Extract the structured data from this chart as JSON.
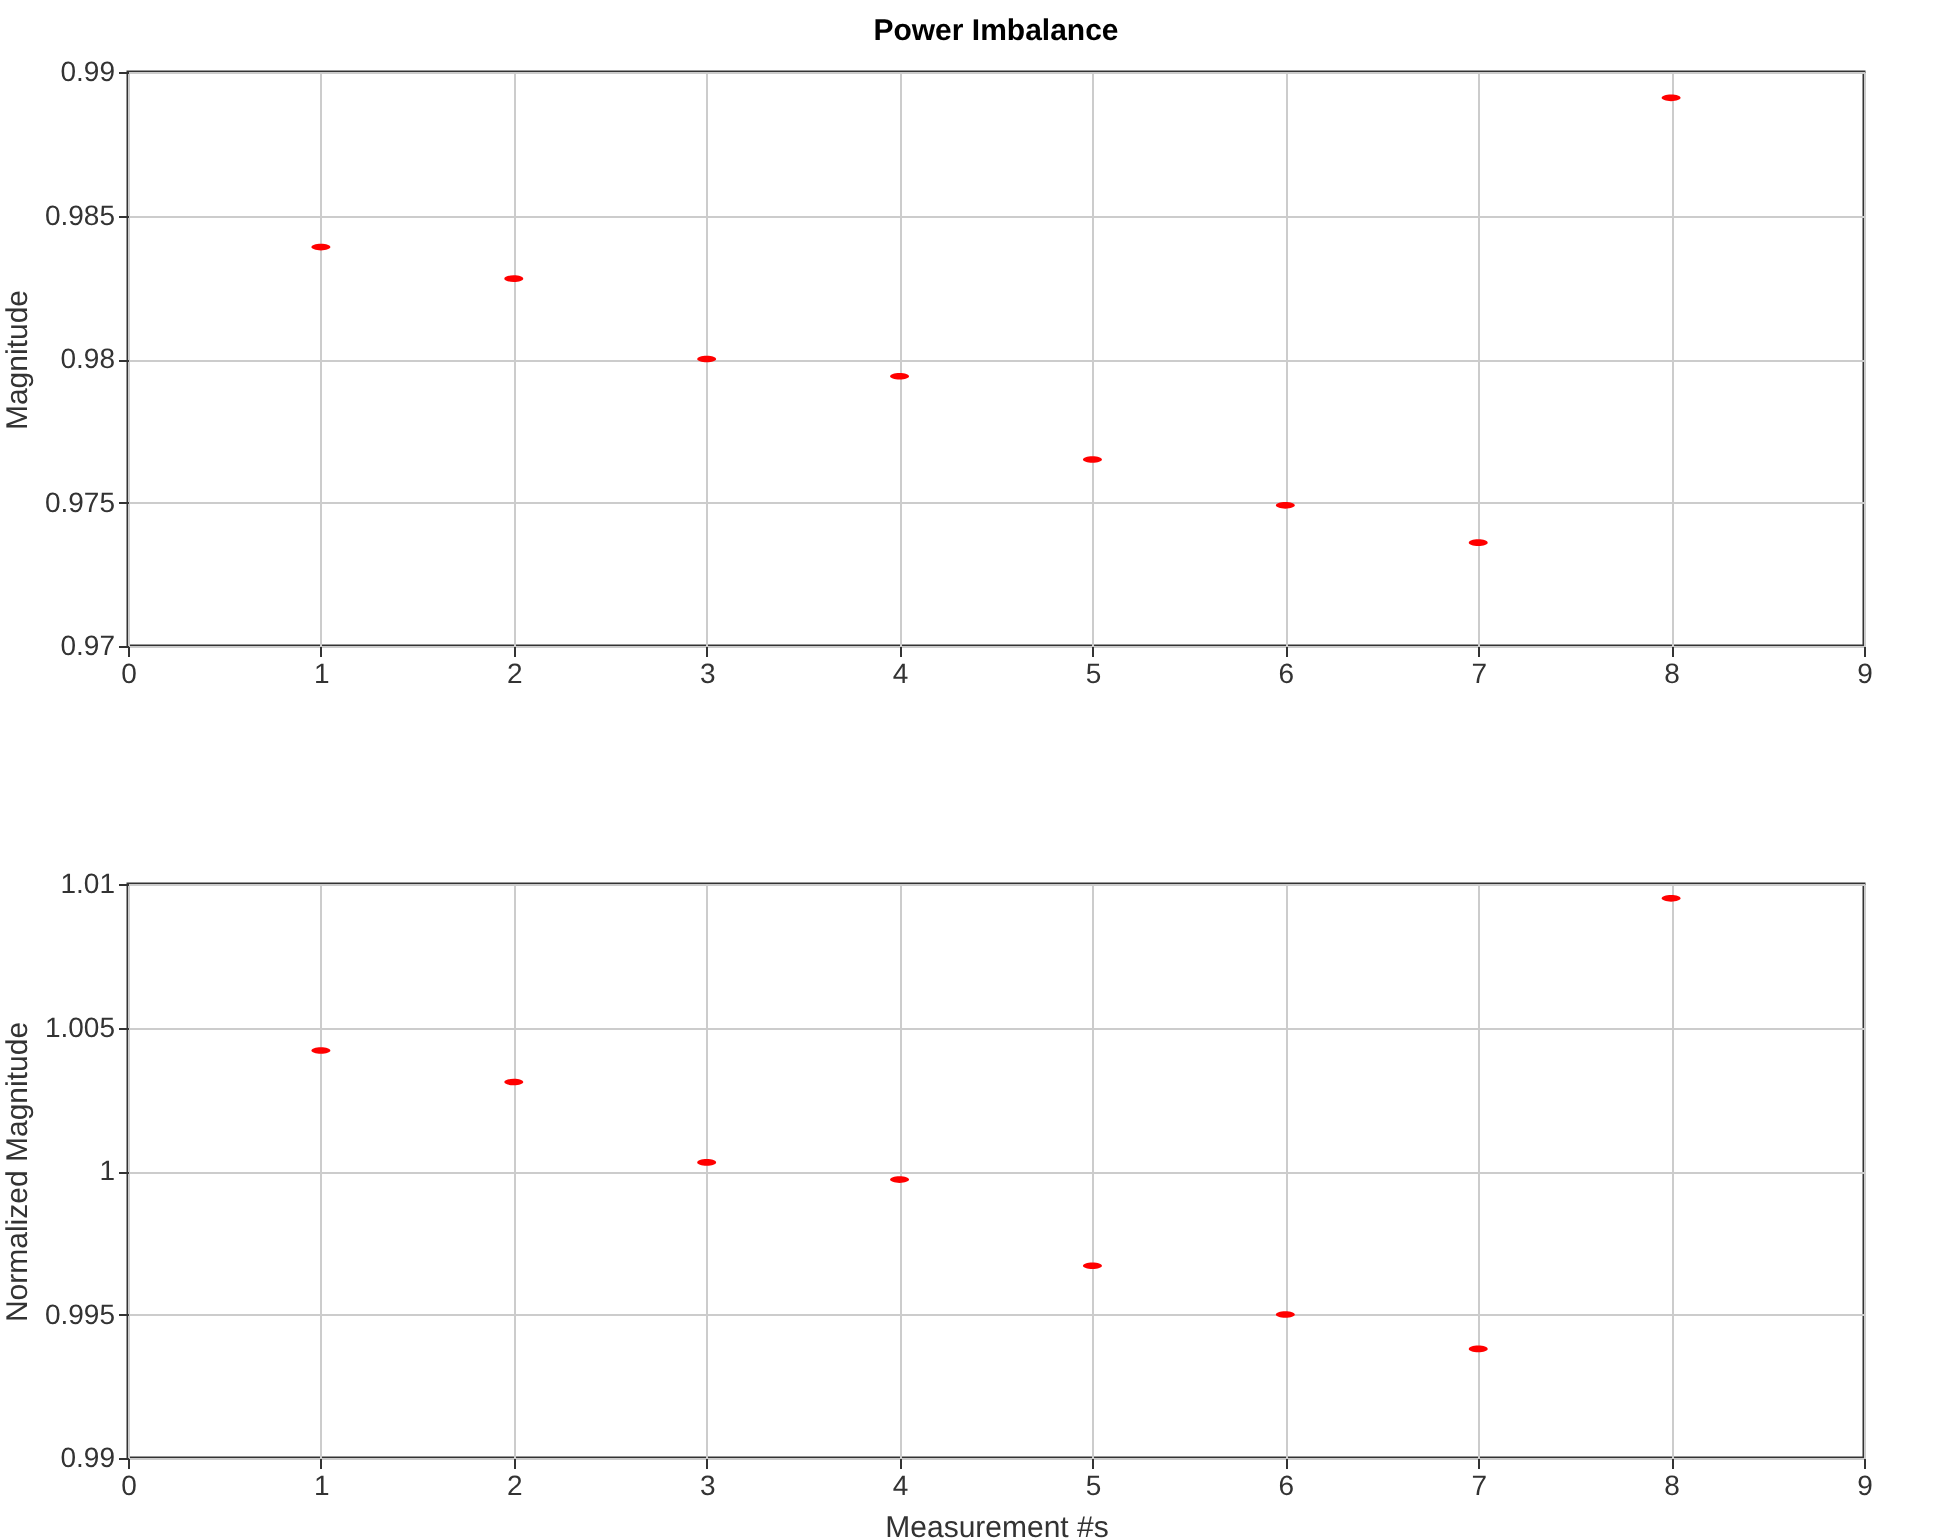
{
  "chart_data": [
    {
      "type": "scatter",
      "title": "Power Imbalance",
      "ylabel": "Magnitude",
      "x": [
        1,
        2,
        3,
        4,
        5,
        6,
        7,
        8
      ],
      "series": [
        {
          "color": "#ff0000",
          "values": [
            0.9839,
            0.9828,
            0.98,
            0.9794,
            0.9765,
            0.9749,
            0.9736,
            0.9891
          ]
        }
      ],
      "xlim": [
        0,
        9
      ],
      "xticks": [
        0,
        1,
        2,
        3,
        4,
        5,
        6,
        7,
        8,
        9
      ],
      "ylim": [
        0.97,
        0.99
      ],
      "yticks": [
        0.97,
        0.975,
        0.98,
        0.985,
        0.99
      ],
      "grid": true
    },
    {
      "type": "scatter",
      "xlabel": "Measurement #s",
      "ylabel": "Normalized Magnitude",
      "x": [
        1,
        2,
        3,
        4,
        5,
        6,
        7,
        8
      ],
      "series": [
        {
          "color": "#ff0000",
          "values": [
            1.0042,
            1.0031,
            1.0003,
            0.9997,
            0.9967,
            0.995,
            0.9938,
            1.0095
          ]
        }
      ],
      "xlim": [
        0,
        9
      ],
      "xticks": [
        0,
        1,
        2,
        3,
        4,
        5,
        6,
        7,
        8,
        9
      ],
      "ylim": [
        0.99,
        1.01
      ],
      "yticks": [
        0.99,
        0.995,
        1,
        1.005,
        1.01
      ],
      "grid": true
    }
  ]
}
